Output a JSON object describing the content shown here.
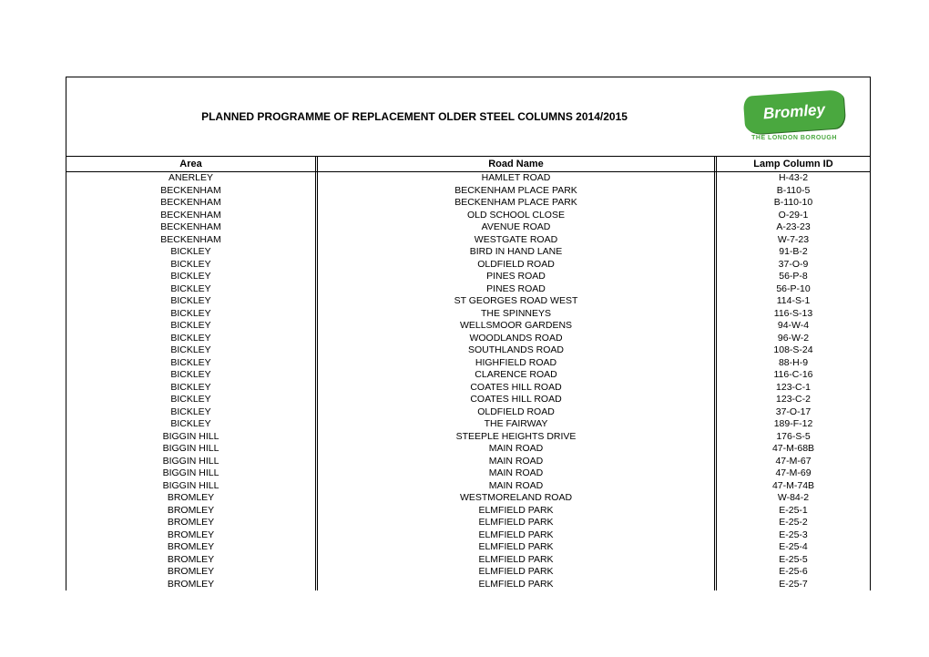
{
  "title": "PLANNED PROGRAMME OF REPLACEMENT OLDER STEEL COLUMNS  2014/2015",
  "logo": {
    "name": "Bromley",
    "sub": "THE LONDON BOROUGH"
  },
  "columns": {
    "area": "Area",
    "road": "Road Name",
    "lamp": "Lamp Column ID"
  },
  "rows": [
    {
      "area": "ANERLEY",
      "road": "HAMLET ROAD",
      "lamp": "H-43-2"
    },
    {
      "area": "BECKENHAM",
      "road": "BECKENHAM PLACE PARK",
      "lamp": "B-110-5"
    },
    {
      "area": "BECKENHAM",
      "road": "BECKENHAM PLACE PARK",
      "lamp": "B-110-10"
    },
    {
      "area": "BECKENHAM",
      "road": "OLD SCHOOL CLOSE",
      "lamp": "O-29-1"
    },
    {
      "area": "BECKENHAM",
      "road": "AVENUE ROAD",
      "lamp": "A-23-23"
    },
    {
      "area": "BECKENHAM",
      "road": "WESTGATE ROAD",
      "lamp": "W-7-23"
    },
    {
      "area": "BICKLEY",
      "road": "BIRD IN HAND LANE",
      "lamp": "91-B-2"
    },
    {
      "area": "BICKLEY",
      "road": "OLDFIELD ROAD",
      "lamp": "37-O-9"
    },
    {
      "area": "BICKLEY",
      "road": "PINES ROAD",
      "lamp": "56-P-8"
    },
    {
      "area": "BICKLEY",
      "road": "PINES ROAD",
      "lamp": "56-P-10"
    },
    {
      "area": "BICKLEY",
      "road": "ST GEORGES ROAD WEST",
      "lamp": "114-S-1"
    },
    {
      "area": "BICKLEY",
      "road": "THE SPINNEYS",
      "lamp": "116-S-13"
    },
    {
      "area": "BICKLEY",
      "road": "WELLSMOOR GARDENS",
      "lamp": "94-W-4"
    },
    {
      "area": "BICKLEY",
      "road": "WOODLANDS ROAD",
      "lamp": "96-W-2"
    },
    {
      "area": "BICKLEY",
      "road": "SOUTHLANDS ROAD",
      "lamp": "108-S-24"
    },
    {
      "area": "BICKLEY",
      "road": "HIGHFIELD ROAD",
      "lamp": "88-H-9"
    },
    {
      "area": "BICKLEY",
      "road": "CLARENCE ROAD",
      "lamp": "116-C-16"
    },
    {
      "area": "BICKLEY",
      "road": "COATES HILL ROAD",
      "lamp": "123-C-1"
    },
    {
      "area": "BICKLEY",
      "road": "COATES HILL ROAD",
      "lamp": "123-C-2"
    },
    {
      "area": "BICKLEY",
      "road": "OLDFIELD ROAD",
      "lamp": "37-O-17"
    },
    {
      "area": "BICKLEY",
      "road": "THE FAIRWAY",
      "lamp": "189-F-12"
    },
    {
      "area": "BIGGIN HILL",
      "road": "STEEPLE HEIGHTS DRIVE",
      "lamp": "176-S-5"
    },
    {
      "area": "BIGGIN HILL",
      "road": "MAIN ROAD",
      "lamp": "47-M-68B"
    },
    {
      "area": "BIGGIN HILL",
      "road": "MAIN ROAD",
      "lamp": "47-M-67"
    },
    {
      "area": "BIGGIN HILL",
      "road": "MAIN ROAD",
      "lamp": "47-M-69"
    },
    {
      "area": "BIGGIN HILL",
      "road": "MAIN ROAD",
      "lamp": "47-M-74B"
    },
    {
      "area": "BROMLEY",
      "road": "WESTMORELAND ROAD",
      "lamp": "W-84-2"
    },
    {
      "area": "BROMLEY",
      "road": "ELMFIELD PARK",
      "lamp": "E-25-1"
    },
    {
      "area": "BROMLEY",
      "road": "ELMFIELD PARK",
      "lamp": "E-25-2"
    },
    {
      "area": "BROMLEY",
      "road": "ELMFIELD PARK",
      "lamp": "E-25-3"
    },
    {
      "area": "BROMLEY",
      "road": "ELMFIELD PARK",
      "lamp": "E-25-4"
    },
    {
      "area": "BROMLEY",
      "road": "ELMFIELD PARK",
      "lamp": "E-25-5"
    },
    {
      "area": "BROMLEY",
      "road": "ELMFIELD PARK",
      "lamp": "E-25-6"
    },
    {
      "area": "BROMLEY",
      "road": "ELMFIELD PARK",
      "lamp": "E-25-7"
    }
  ]
}
